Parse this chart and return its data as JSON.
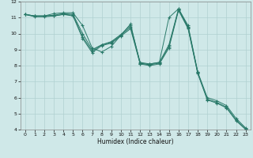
{
  "title": "",
  "xlabel": "Humidex (Indice chaleur)",
  "xlim": [
    -0.5,
    23.5
  ],
  "ylim": [
    4,
    12
  ],
  "xticks": [
    0,
    1,
    2,
    3,
    4,
    5,
    6,
    7,
    8,
    9,
    10,
    11,
    12,
    13,
    14,
    15,
    16,
    17,
    18,
    19,
    20,
    21,
    22,
    23
  ],
  "yticks": [
    4,
    5,
    6,
    7,
    8,
    9,
    10,
    11,
    12
  ],
  "bg_color": "#cfe8e8",
  "grid_color": "#b0d0d0",
  "line_color": "#2a7a6a",
  "series": [
    {
      "x": [
        0,
        1,
        2,
        3,
        4,
        5,
        6,
        7,
        8,
        9,
        10,
        11,
        12,
        13,
        14,
        15,
        16,
        17,
        18
      ],
      "y": [
        11.2,
        11.1,
        11.1,
        11.25,
        11.3,
        11.3,
        10.5,
        9.1,
        8.85,
        9.2,
        9.9,
        10.6,
        8.1,
        8.1,
        8.2,
        11.0,
        11.55,
        10.5,
        7.6
      ]
    },
    {
      "x": [
        0,
        1,
        2,
        3,
        4,
        5,
        6,
        7,
        8,
        9,
        10,
        11,
        12,
        13,
        14,
        15,
        16,
        17,
        18,
        19,
        20,
        21,
        22,
        23
      ],
      "y": [
        11.2,
        11.1,
        11.1,
        11.15,
        11.25,
        11.2,
        10.0,
        9.0,
        9.3,
        9.5,
        9.95,
        10.5,
        8.2,
        8.1,
        8.2,
        9.3,
        11.55,
        10.4,
        7.6,
        6.0,
        5.8,
        5.5,
        4.7,
        4.1
      ]
    },
    {
      "x": [
        0,
        1,
        2,
        3,
        4,
        5,
        6,
        7,
        8,
        9,
        10,
        11,
        12,
        13,
        14,
        15,
        16,
        17,
        18,
        19,
        20,
        21,
        22,
        23
      ],
      "y": [
        11.2,
        11.1,
        11.1,
        11.1,
        11.2,
        11.15,
        9.8,
        8.9,
        9.3,
        9.45,
        9.9,
        10.4,
        8.15,
        8.05,
        8.15,
        9.2,
        11.5,
        10.35,
        7.55,
        5.9,
        5.7,
        5.4,
        4.6,
        4.05
      ]
    },
    {
      "x": [
        0,
        1,
        2,
        3,
        4,
        5,
        6,
        7,
        8,
        9,
        10,
        11,
        12,
        13,
        14,
        15,
        16,
        17,
        18,
        19,
        20,
        21,
        22,
        23
      ],
      "y": [
        11.2,
        11.05,
        11.05,
        11.1,
        11.2,
        11.1,
        9.7,
        8.8,
        9.25,
        9.4,
        9.85,
        10.3,
        8.1,
        8.0,
        8.1,
        9.1,
        11.45,
        10.3,
        7.5,
        5.85,
        5.65,
        5.35,
        4.55,
        4.0
      ]
    }
  ]
}
